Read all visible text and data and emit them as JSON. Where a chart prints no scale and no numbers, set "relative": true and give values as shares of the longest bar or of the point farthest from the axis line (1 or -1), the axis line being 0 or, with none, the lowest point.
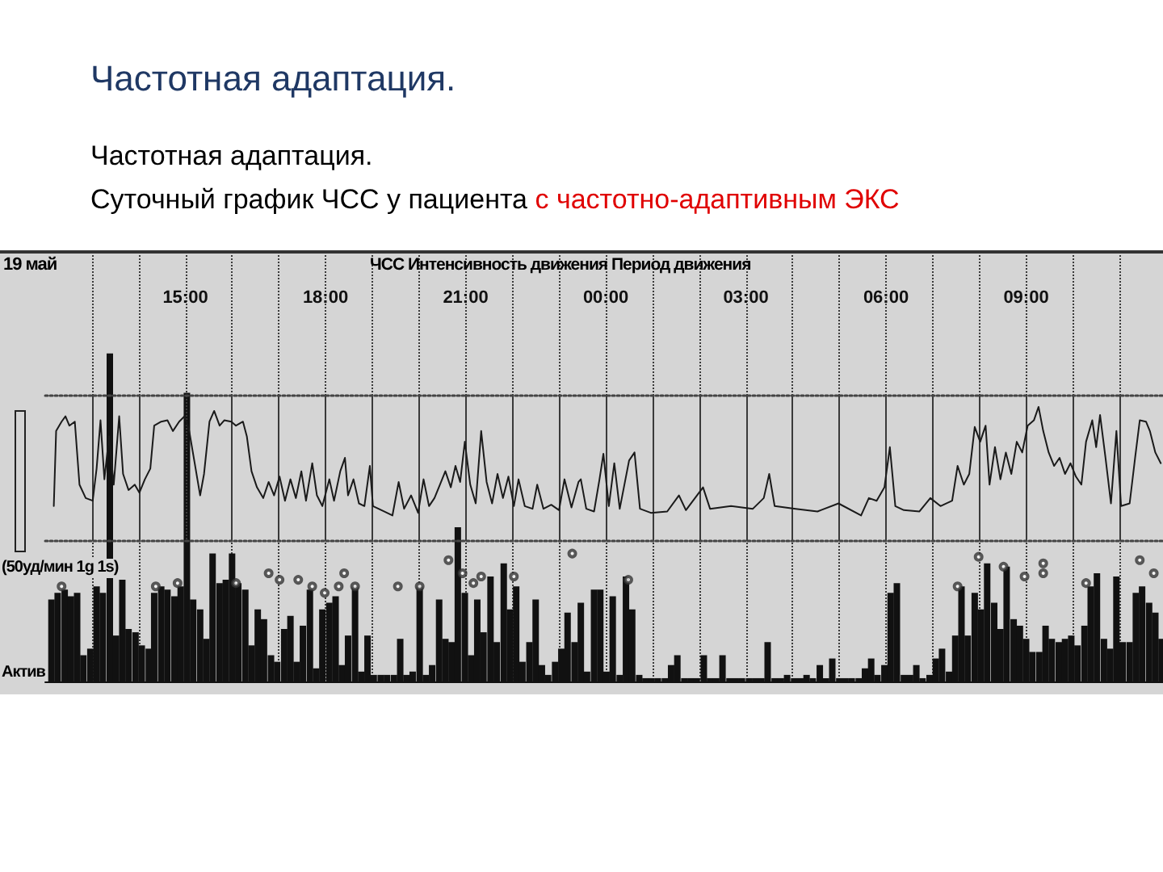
{
  "chart_data": [
    {
      "type": "line",
      "title": "Частотная адаптация.",
      "subtitle": "Частотная адаптация.",
      "annotations": [
        "Суточный график ЧСС у пациента",
        "с частотно-адаптивным ЭКС",
        "19 май",
        "ЧСС Интенсивность движения Период движения",
        "(50уд/мин 1g 1s)"
      ],
      "relative": true,
      "marker": "none",
      "grid": "x",
      "tick_labels": "x",
      "xlim": [
        "--05-19T12:00",
        "--05-20T12:00"
      ],
      "xticks": [
        {
          "value": "--05-19T13:00",
          "label": null
        },
        {
          "value": "--05-19T14:00",
          "label": null
        },
        {
          "value": "--05-19T15:00",
          "label": "15:00"
        },
        {
          "value": "--05-19T16:00",
          "label": null
        },
        {
          "value": "--05-19T17:00",
          "label": null
        },
        {
          "value": "--05-19T18:00",
          "label": "18:00"
        },
        {
          "value": "--05-19T19:00",
          "label": null
        },
        {
          "value": "--05-19T20:00",
          "label": null
        },
        {
          "value": "--05-19T21:00",
          "label": "21:00"
        },
        {
          "value": "--05-19T22:00",
          "label": null
        },
        {
          "value": "--05-19T23:00",
          "label": null
        },
        {
          "value": "--05-20T00:00",
          "label": "00:00"
        },
        {
          "value": "--05-20T01:00",
          "label": null
        },
        {
          "value": "--05-20T02:00",
          "label": null
        },
        {
          "value": "--05-20T03:00",
          "label": "03:00"
        },
        {
          "value": "--05-20T04:00",
          "label": null
        },
        {
          "value": "--05-20T05:00",
          "label": null
        },
        {
          "value": "--05-20T06:00",
          "label": "06:00"
        },
        {
          "value": "--05-20T07:00",
          "label": null
        },
        {
          "value": "--05-20T08:00",
          "label": null
        },
        {
          "value": "--05-20T09:00",
          "label": "09:00"
        },
        {
          "value": "--05-20T10:00",
          "label": null
        },
        {
          "value": "--05-20T11:00",
          "label": null
        }
      ],
      "series": [
        {
          "color": "#1a1a1a",
          "x": [
            "--05-19T12:11",
            "--05-19T12:14",
            "--05-19T12:21",
            "--05-19T12:26",
            "--05-19T12:31",
            "--05-19T12:38",
            "--05-19T12:44",
            "--05-19T12:52",
            "--05-19T13:01",
            "--05-19T13:06",
            "--05-19T13:11",
            "--05-19T13:16",
            "--05-19T13:22",
            "--05-19T13:28",
            "--05-19T13:35",
            "--05-19T13:40",
            "--05-19T13:47",
            "--05-19T13:55",
            "--05-19T14:01",
            "--05-19T14:08",
            "--05-19T14:15",
            "--05-19T14:20",
            "--05-19T14:29",
            "--05-19T14:37",
            "--05-19T14:44",
            "--05-19T14:52",
            "--05-19T14:59",
            "--05-19T15:05",
            "--05-19T15:12",
            "--05-19T15:19",
            "--05-19T15:24",
            "--05-19T15:31",
            "--05-19T15:37",
            "--05-19T15:44",
            "--05-19T15:50",
            "--05-19T15:59",
            "--05-19T16:05",
            "--05-19T16:14",
            "--05-19T16:19",
            "--05-19T16:25",
            "--05-19T16:32",
            "--05-19T16:40",
            "--05-19T16:47",
            "--05-19T16:54",
            "--05-19T17:01",
            "--05-19T17:08",
            "--05-19T17:15",
            "--05-19T17:22",
            "--05-19T17:29",
            "--05-19T17:35",
            "--05-19T17:43",
            "--05-19T17:49",
            "--05-19T17:56",
            "--05-19T18:05",
            "--05-19T18:11",
            "--05-19T18:19",
            "--05-19T18:25",
            "--05-19T18:29",
            "--05-19T18:36",
            "--05-19T18:43",
            "--05-19T18:50",
            "--05-19T18:57",
            "--05-19T19:01",
            "--05-19T19:12",
            "--05-19T19:26",
            "--05-19T19:34",
            "--05-19T19:41",
            "--05-19T19:50",
            "--05-19T19:59",
            "--05-19T20:06",
            "--05-19T20:13",
            "--05-19T20:20",
            "--05-19T20:27",
            "--05-19T20:34",
            "--05-19T20:41",
            "--05-19T20:47",
            "--05-19T20:53",
            "--05-19T20:59",
            "--05-19T21:06",
            "--05-19T21:13",
            "--05-19T21:20",
            "--05-19T21:27",
            "--05-19T21:34",
            "--05-19T21:41",
            "--05-19T21:48",
            "--05-19T21:55",
            "--05-19T22:02",
            "--05-19T22:08",
            "--05-19T22:16",
            "--05-19T22:26",
            "--05-19T22:32",
            "--05-19T22:40",
            "--05-19T22:50",
            "--05-19T23:00",
            "--05-19T23:07",
            "--05-19T23:16",
            "--05-19T23:25",
            "--05-19T23:28",
            "--05-19T23:35",
            "--05-19T23:45",
            "--05-19T23:52",
            "--05-19T23:57",
            "--05-20T00:04",
            "--05-20T00:11",
            "--05-20T00:18",
            "--05-20T00:30",
            "--05-20T00:37",
            "--05-20T00:44",
            "--05-20T00:58",
            "--05-20T01:19",
            "--05-20T01:34",
            "--05-20T01:43",
            "--05-20T02:05",
            "--05-20T02:14",
            "--05-20T02:41",
            "--05-20T03:09",
            "--05-20T03:23",
            "--05-20T03:30",
            "--05-20T03:37",
            "--05-20T04:04",
            "--05-20T04:32",
            "--05-20T04:59",
            "--05-20T05:28",
            "--05-20T05:38",
            "--05-20T05:48",
            "--05-20T05:58",
            "--05-20T06:05",
            "--05-20T06:12",
            "--05-20T06:23",
            "--05-20T06:43",
            "--05-20T06:57",
            "--05-20T07:10",
            "--05-20T07:25",
            "--05-20T07:32",
            "--05-20T07:40",
            "--05-20T07:47",
            "--05-20T07:54",
            "--05-20T08:01",
            "--05-20T08:08",
            "--05-20T08:13",
            "--05-20T08:20",
            "--05-20T08:27",
            "--05-20T08:34",
            "--05-20T08:41",
            "--05-20T08:48",
            "--05-20T08:55",
            "--05-20T09:02",
            "--05-20T09:10",
            "--05-20T09:16",
            "--05-20T09:22",
            "--05-20T09:29",
            "--05-20T09:36",
            "--05-20T09:43",
            "--05-20T09:50",
            "--05-20T09:57",
            "--05-20T10:04",
            "--05-20T10:11",
            "--05-20T10:17",
            "--05-20T10:25",
            "--05-20T10:30",
            "--05-20T10:35",
            "--05-20T10:42",
            "--05-20T10:49",
            "--05-20T10:56",
            "--05-20T11:02",
            "--05-20T11:13",
            "--05-20T11:20",
            "--05-20T11:26",
            "--05-20T11:34",
            "--05-20T11:39",
            "--05-20T11:46",
            "--05-20T11:53"
          ],
          "values": [
            0.26,
            0.82,
            0.89,
            0.93,
            0.86,
            0.89,
            0.42,
            0.32,
            0.3,
            0.54,
            0.9,
            0.46,
            0.78,
            0.42,
            0.93,
            0.5,
            0.38,
            0.42,
            0.36,
            0.46,
            0.54,
            0.86,
            0.89,
            0.9,
            0.82,
            0.89,
            0.93,
            0.82,
            0.58,
            0.34,
            0.5,
            0.89,
            0.97,
            0.86,
            0.9,
            0.89,
            0.86,
            0.89,
            0.78,
            0.52,
            0.4,
            0.32,
            0.44,
            0.34,
            0.48,
            0.3,
            0.46,
            0.32,
            0.52,
            0.3,
            0.58,
            0.34,
            0.26,
            0.46,
            0.3,
            0.52,
            0.62,
            0.34,
            0.46,
            0.28,
            0.26,
            0.56,
            0.26,
            0.23,
            0.19,
            0.44,
            0.24,
            0.34,
            0.21,
            0.46,
            0.26,
            0.32,
            0.42,
            0.52,
            0.4,
            0.56,
            0.44,
            0.74,
            0.42,
            0.28,
            0.82,
            0.44,
            0.28,
            0.5,
            0.32,
            0.48,
            0.26,
            0.46,
            0.26,
            0.24,
            0.42,
            0.24,
            0.27,
            0.23,
            0.46,
            0.25,
            0.44,
            0.46,
            0.24,
            0.22,
            0.46,
            0.65,
            0.26,
            0.58,
            0.24,
            0.6,
            0.66,
            0.24,
            0.21,
            0.22,
            0.34,
            0.23,
            0.4,
            0.24,
            0.26,
            0.24,
            0.32,
            0.5,
            0.26,
            0.24,
            0.22,
            0.28,
            0.19,
            0.32,
            0.3,
            0.4,
            0.7,
            0.26,
            0.23,
            0.22,
            0.32,
            0.26,
            0.3,
            0.56,
            0.42,
            0.5,
            0.85,
            0.74,
            0.86,
            0.42,
            0.7,
            0.46,
            0.66,
            0.5,
            0.74,
            0.66,
            0.86,
            0.9,
            1,
            0.82,
            0.66,
            0.56,
            0.62,
            0.5,
            0.58,
            0.48,
            0.42,
            0.74,
            0.9,
            0.7,
            0.94,
            0.62,
            0.28,
            0.82,
            0.26,
            0.28,
            0.62,
            0.9,
            0.89,
            0.82,
            0.66,
            0.58
          ]
        }
      ]
    },
    {
      "type": "bar",
      "ylabel": "Актив",
      "relative": true,
      "grid": "x",
      "tick_labels": false,
      "marker": "circle",
      "xlim": [
        "--05-19T12:00",
        "--05-20T12:00"
      ],
      "xticks": [
        {
          "value": "--05-19T13:00",
          "label": null
        },
        {
          "value": "--05-19T14:00",
          "label": null
        },
        {
          "value": "--05-19T15:00",
          "label": null
        },
        {
          "value": "--05-19T16:00",
          "label": null
        },
        {
          "value": "--05-19T17:00",
          "label": null
        },
        {
          "value": "--05-19T18:00",
          "label": null
        },
        {
          "value": "--05-19T19:00",
          "label": null
        },
        {
          "value": "--05-19T20:00",
          "label": null
        },
        {
          "value": "--05-19T21:00",
          "label": null
        },
        {
          "value": "--05-19T22:00",
          "label": null
        },
        {
          "value": "--05-19T23:00",
          "label": null
        },
        {
          "value": "--05-20T00:00",
          "label": null
        },
        {
          "value": "--05-20T01:00",
          "label": null
        },
        {
          "value": "--05-20T02:00",
          "label": null
        },
        {
          "value": "--05-20T03:00",
          "label": null
        },
        {
          "value": "--05-20T04:00",
          "label": null
        },
        {
          "value": "--05-20T05:00",
          "label": null
        },
        {
          "value": "--05-20T06:00",
          "label": null
        },
        {
          "value": "--05-20T07:00",
          "label": null
        },
        {
          "value": "--05-20T08:00",
          "label": null
        },
        {
          "value": "--05-20T09:00",
          "label": null
        },
        {
          "value": "--05-20T10:00",
          "label": null
        },
        {
          "value": "--05-20T11:00",
          "label": null
        }
      ],
      "series": [
        {
          "color": "#111111",
          "x": [
            "--05-19T12:08",
            "--05-19T12:16",
            "--05-19T12:25",
            "--05-19T12:33",
            "--05-19T12:41",
            "--05-19T12:49",
            "--05-19T12:58",
            "--05-19T13:06",
            "--05-19T13:14",
            "--05-19T13:23",
            "--05-19T13:31",
            "--05-19T13:39",
            "--05-19T13:47",
            "--05-19T13:56",
            "--05-19T14:04",
            "--05-19T14:13",
            "--05-19T14:20",
            "--05-19T14:29",
            "--05-19T14:37",
            "--05-19T14:46",
            "--05-19T14:54",
            "--05-19T15:02",
            "--05-19T15:10",
            "--05-19T15:19",
            "--05-19T15:27",
            "--05-19T15:35",
            "--05-19T15:44",
            "--05-19T15:52",
            "--05-19T16:00",
            "--05-19T16:08",
            "--05-19T16:17",
            "--05-19T16:25",
            "--05-19T16:33",
            "--05-19T16:41",
            "--05-19T16:50",
            "--05-19T16:58",
            "--05-19T17:07",
            "--05-19T17:15",
            "--05-19T17:23",
            "--05-19T17:31",
            "--05-19T17:40",
            "--05-19T17:48",
            "--05-19T17:56",
            "--05-19T18:05",
            "--05-19T18:13",
            "--05-19T18:21",
            "--05-19T18:29",
            "--05-19T18:38",
            "--05-19T18:46",
            "--05-19T18:54",
            "--05-19T19:02",
            "--05-19T19:11",
            "--05-19T19:19",
            "--05-19T19:28",
            "--05-19T19:36",
            "--05-19T19:44",
            "--05-19T19:52",
            "--05-19T20:01",
            "--05-19T20:09",
            "--05-19T20:17",
            "--05-19T20:26",
            "--05-19T20:34",
            "--05-19T20:42",
            "--05-19T20:50",
            "--05-19T20:59",
            "--05-19T21:07",
            "--05-19T21:15",
            "--05-19T21:23",
            "--05-19T21:32",
            "--05-19T21:40",
            "--05-19T21:49",
            "--05-19T21:57",
            "--05-19T22:05",
            "--05-19T22:13",
            "--05-19T22:22",
            "--05-19T22:30",
            "--05-19T22:38",
            "--05-19T22:46",
            "--05-19T22:55",
            "--05-19T23:03",
            "--05-19T23:11",
            "--05-19T23:20",
            "--05-19T23:28",
            "--05-19T23:36",
            "--05-19T23:45",
            "--05-19T23:53",
            "--05-20T00:01",
            "--05-20T00:09",
            "--05-20T00:18",
            "--05-20T00:26",
            "--05-20T00:34",
            "--05-20T00:43",
            "--05-20T00:51",
            "--05-20T00:59",
            "--05-20T01:07",
            "--05-20T01:16",
            "--05-20T01:24",
            "--05-20T01:32",
            "--05-20T01:41",
            "--05-20T01:49",
            "--05-20T01:57",
            "--05-20T02:06",
            "--05-20T02:14",
            "--05-20T02:22",
            "--05-20T02:30",
            "--05-20T02:39",
            "--05-20T02:47",
            "--05-20T02:55",
            "--05-20T03:04",
            "--05-20T03:12",
            "--05-20T03:20",
            "--05-20T03:28",
            "--05-20T03:37",
            "--05-20T03:45",
            "--05-20T03:53",
            "--05-20T04:02",
            "--05-20T04:10",
            "--05-20T04:18",
            "--05-20T04:26",
            "--05-20T04:35",
            "--05-20T04:43",
            "--05-20T04:51",
            "--05-20T05:00",
            "--05-20T05:08",
            "--05-20T05:16",
            "--05-20T05:25",
            "--05-20T05:33",
            "--05-20T05:41",
            "--05-20T05:49",
            "--05-20T05:58",
            "--05-20T06:06",
            "--05-20T06:14",
            "--05-20T06:23",
            "--05-20T06:31",
            "--05-20T06:39",
            "--05-20T06:47",
            "--05-20T06:56",
            "--05-20T07:04",
            "--05-20T07:12",
            "--05-20T07:21",
            "--05-20T07:29",
            "--05-20T07:37",
            "--05-20T07:45",
            "--05-20T07:54",
            "--05-20T08:02",
            "--05-20T08:10",
            "--05-20T08:19",
            "--05-20T08:27",
            "--05-20T08:35",
            "--05-20T08:44",
            "--05-20T08:52",
            "--05-20T09:00",
            "--05-20T09:08",
            "--05-20T09:17",
            "--05-20T09:25",
            "--05-20T09:33",
            "--05-20T09:42",
            "--05-20T09:50",
            "--05-20T09:58",
            "--05-20T10:06",
            "--05-20T10:15",
            "--05-20T10:23",
            "--05-20T10:31",
            "--05-20T10:40",
            "--05-20T10:48",
            "--05-20T10:56",
            "--05-20T11:04",
            "--05-20T11:13",
            "--05-20T11:21",
            "--05-20T11:29",
            "--05-20T11:38",
            "--05-20T11:46",
            "--05-20T11:54"
          ],
          "values": [
            0.25,
            0.27,
            0.28,
            0.26,
            0.27,
            0.08,
            0.1,
            0.29,
            0.27,
            1,
            0.14,
            0.31,
            0.16,
            0.15,
            0.11,
            0.1,
            0.27,
            0.29,
            0.28,
            0.26,
            0.29,
            0.88,
            0.25,
            0.22,
            0.13,
            0.39,
            0.3,
            0.31,
            0.39,
            0.3,
            0.28,
            0.11,
            0.22,
            0.19,
            0.08,
            0.06,
            0.16,
            0.2,
            0.06,
            0.17,
            0.28,
            0.04,
            0.22,
            0.24,
            0.26,
            0.05,
            0.14,
            0.29,
            0.03,
            0.14,
            0.02,
            0.02,
            0.02,
            0.02,
            0.13,
            0.02,
            0.03,
            0.29,
            0.02,
            0.05,
            0.25,
            0.13,
            0.12,
            0.47,
            0.27,
            0.08,
            0.25,
            0.15,
            0.32,
            0.12,
            0.36,
            0.22,
            0.29,
            0.06,
            0.12,
            0.25,
            0.05,
            0.02,
            0.06,
            0.1,
            0.21,
            0.12,
            0.24,
            0.03,
            0.28,
            0.28,
            0.03,
            0.26,
            0.02,
            0.32,
            0.22,
            0.02,
            0.01,
            0.01,
            0.01,
            0.01,
            0.05,
            0.08,
            0.01,
            0.01,
            0.01,
            0.08,
            0.01,
            0.01,
            0.08,
            0.01,
            0.01,
            0.01,
            0.01,
            0.01,
            0.01,
            0.12,
            0.01,
            0.01,
            0.02,
            0.01,
            0.01,
            0.02,
            0.01,
            0.05,
            0.01,
            0.07,
            0.01,
            0.01,
            0.01,
            0.01,
            0.04,
            0.07,
            0.02,
            0.05,
            0.27,
            0.3,
            0.02,
            0.02,
            0.05,
            0.01,
            0.02,
            0.07,
            0.1,
            0.03,
            0.14,
            0.29,
            0.14,
            0.27,
            0.22,
            0.36,
            0.24,
            0.16,
            0.35,
            0.19,
            0.17,
            0.13,
            0.09,
            0.09,
            0.17,
            0.13,
            0.12,
            0.13,
            0.14,
            0.11,
            0.17,
            0.29,
            0.33,
            0.13,
            0.1,
            0.32,
            0.12,
            0.12,
            0.27,
            0.29,
            0.24,
            0.21,
            0.13
          ]
        },
        {
          "type": "scatter",
          "color": "#333333",
          "x": [
            "--05-19T12:21",
            "--05-19T14:22",
            "--05-19T14:50",
            "--05-19T16:05",
            "--05-19T16:47",
            "--05-19T17:01",
            "--05-19T17:25",
            "--05-19T17:43",
            "--05-19T17:59",
            "--05-19T18:17",
            "--05-19T18:24",
            "--05-19T18:38",
            "--05-19T19:33",
            "--05-19T20:01",
            "--05-19T20:38",
            "--05-19T20:56",
            "--05-19T21:10",
            "--05-19T21:20",
            "--05-19T22:02",
            "--05-19T23:17",
            "--05-20T00:29",
            "--05-20T07:32",
            "--05-20T07:59",
            "--05-20T08:31",
            "--05-20T08:58",
            "--05-20T09:22",
            "--05-20T09:22",
            "--05-20T10:17",
            "--05-20T11:26",
            "--05-20T11:44"
          ],
          "values": [
            0.29,
            0.29,
            0.3,
            0.3,
            0.33,
            0.31,
            0.31,
            0.29,
            0.27,
            0.29,
            0.33,
            0.29,
            0.29,
            0.29,
            0.37,
            0.33,
            0.3,
            0.32,
            0.32,
            0.39,
            0.31,
            0.29,
            0.38,
            0.35,
            0.32,
            0.36,
            0.33,
            0.3,
            0.37,
            0.33
          ]
        }
      ]
    }
  ]
}
